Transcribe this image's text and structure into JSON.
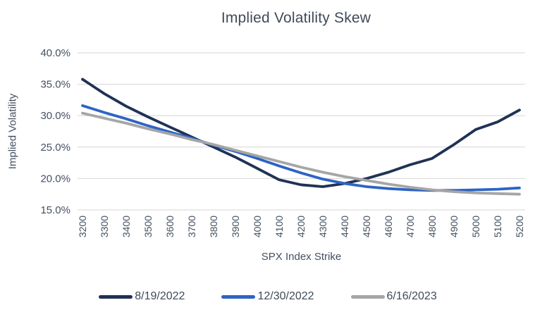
{
  "chart_data": {
    "type": "line",
    "title": "Implied Volatility Skew",
    "xlabel": "SPX Index Strike",
    "ylabel": "Implied Volatility",
    "categories": [
      3200,
      3300,
      3400,
      3500,
      3600,
      3700,
      3800,
      3900,
      4000,
      4100,
      4200,
      4300,
      4400,
      4500,
      4600,
      4700,
      4800,
      4900,
      5000,
      5100,
      5200
    ],
    "series": [
      {
        "name": "8/19/2022",
        "color": "#1f3255",
        "values": [
          35.8,
          33.5,
          31.5,
          29.8,
          28.2,
          26.6,
          25.0,
          23.4,
          21.6,
          19.8,
          19.0,
          18.7,
          19.2,
          20.0,
          21.0,
          22.2,
          23.2,
          25.4,
          27.8,
          29.0,
          30.9
        ]
      },
      {
        "name": "12/30/2022",
        "color": "#2d64c4",
        "values": [
          31.6,
          30.5,
          29.5,
          28.4,
          27.4,
          26.4,
          25.3,
          24.3,
          23.2,
          22.0,
          20.9,
          19.9,
          19.2,
          18.7,
          18.4,
          18.2,
          18.1,
          18.1,
          18.2,
          18.3,
          18.5
        ]
      },
      {
        "name": "6/16/2023",
        "color": "#a6a6a6",
        "values": [
          30.4,
          29.6,
          28.8,
          27.9,
          27.1,
          26.2,
          25.4,
          24.5,
          23.6,
          22.7,
          21.8,
          21.0,
          20.3,
          19.7,
          19.1,
          18.6,
          18.2,
          17.9,
          17.7,
          17.6,
          17.5
        ]
      }
    ],
    "ylim": [
      15,
      40
    ],
    "y_tick_step": 5,
    "y_tick_labels": [
      "15.0%",
      "20.0%",
      "25.0%",
      "30.0%",
      "35.0%",
      "40.0%"
    ],
    "grid": "horizontal-only",
    "legend_position": "bottom",
    "x_tick_label_rotation": -90
  },
  "colors": {
    "text_dark": "#3f4a5a",
    "text_axis": "#445060",
    "gridline": "#d6d6d6",
    "background": "#ffffff"
  }
}
